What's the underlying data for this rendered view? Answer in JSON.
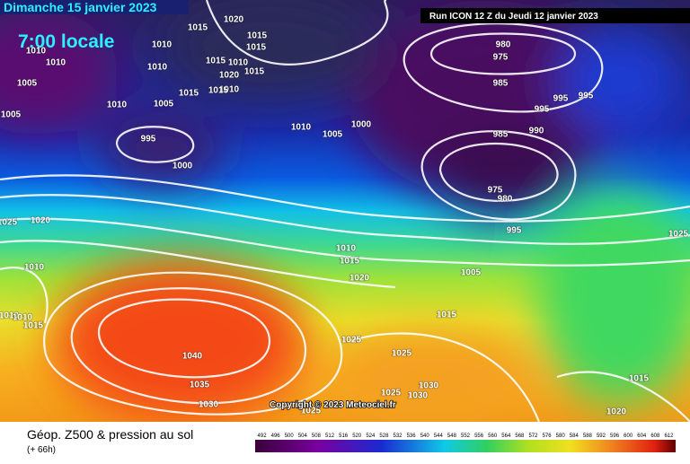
{
  "header": {
    "title": "Dimanche 15 janvier 2023",
    "time": "7:00 locale",
    "run": "Run ICON 12 Z du Jeudi 12 janvier 2023"
  },
  "copyright": "Copyright © 2023 Meteociel.fr",
  "legend": {
    "title": "Géop. Z500 & pression au sol",
    "lead": "(+ 66h)",
    "scale": [
      492,
      496,
      500,
      504,
      508,
      512,
      516,
      520,
      524,
      528,
      532,
      536,
      540,
      544,
      548,
      552,
      556,
      560,
      564,
      568,
      572,
      576,
      580,
      584,
      588,
      592,
      596,
      600,
      604,
      608,
      612
    ]
  },
  "isobar_labels": [
    1010,
    1010,
    1010,
    1005,
    1005,
    1010,
    1005,
    1015,
    1010,
    1010,
    1020,
    1015,
    1015,
    1015,
    1015,
    1010,
    1020,
    1015,
    1010,
    1015,
    995,
    1000,
    1010,
    1005,
    1000,
    980,
    975,
    985,
    995,
    995,
    995,
    985,
    990,
    975,
    980,
    995,
    1025,
    1025,
    1020,
    1010,
    1010,
    1015,
    1020,
    1005,
    1015,
    1010,
    1010,
    1015,
    1025,
    1025,
    1040,
    1035,
    1030,
    1025,
    1030,
    1030,
    1015,
    1020,
    1025
  ]
}
